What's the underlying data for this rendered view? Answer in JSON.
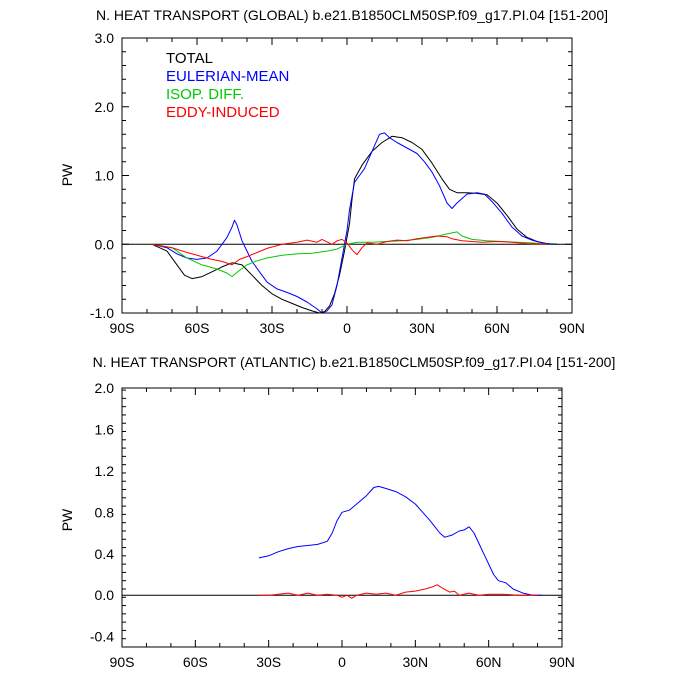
{
  "chart_data": [
    {
      "type": "line",
      "title": "N. HEAT TRANSPORT (GLOBAL) b.e21.B1850CLM50SP.f09_g17.PI.04 [151-200]",
      "ylabel": "PW",
      "xlim": [
        -90,
        90
      ],
      "ylim": [
        -1.0,
        3.0
      ],
      "x_ticks": [
        -90,
        -60,
        -30,
        0,
        30,
        60,
        90
      ],
      "x_tick_labels": [
        "90S",
        "60S",
        "30S",
        "0",
        "30N",
        "60N",
        "90N"
      ],
      "y_ticks": [
        -1.0,
        0.0,
        1.0,
        2.0,
        3.0
      ],
      "y_tick_labels": [
        "-1.0",
        "0.0",
        "1.0",
        "2.0",
        "3.0"
      ],
      "legend": "top-left",
      "zero_line": true,
      "series": [
        {
          "name": "TOTAL",
          "color": "#000000",
          "points": [
            [
              -78,
              0.0
            ],
            [
              -72,
              -0.1
            ],
            [
              -68,
              -0.3
            ],
            [
              -65,
              -0.45
            ],
            [
              -62,
              -0.5
            ],
            [
              -58,
              -0.47
            ],
            [
              -54,
              -0.4
            ],
            [
              -50,
              -0.33
            ],
            [
              -46,
              -0.27
            ],
            [
              -42,
              -0.3
            ],
            [
              -38,
              -0.45
            ],
            [
              -34,
              -0.6
            ],
            [
              -30,
              -0.72
            ],
            [
              -26,
              -0.8
            ],
            [
              -22,
              -0.86
            ],
            [
              -18,
              -0.92
            ],
            [
              -14,
              -0.97
            ],
            [
              -11,
              -1.0
            ],
            [
              -9,
              -0.98
            ],
            [
              -7,
              -0.9
            ],
            [
              -5,
              -0.72
            ],
            [
              -3,
              -0.45
            ],
            [
              -1,
              -0.1
            ],
            [
              1,
              0.3
            ],
            [
              2,
              0.65
            ],
            [
              3,
              0.95
            ],
            [
              6,
              1.15
            ],
            [
              10,
              1.35
            ],
            [
              14,
              1.48
            ],
            [
              18,
              1.57
            ],
            [
              22,
              1.55
            ],
            [
              26,
              1.48
            ],
            [
              30,
              1.38
            ],
            [
              34,
              1.18
            ],
            [
              38,
              0.95
            ],
            [
              41,
              0.8
            ],
            [
              44,
              0.75
            ],
            [
              48,
              0.75
            ],
            [
              52,
              0.74
            ],
            [
              56,
              0.72
            ],
            [
              60,
              0.6
            ],
            [
              64,
              0.42
            ],
            [
              68,
              0.22
            ],
            [
              72,
              0.1
            ],
            [
              76,
              0.04
            ],
            [
              80,
              0.01
            ],
            [
              84,
              0.0
            ]
          ]
        },
        {
          "name": "EULERIAN-MEAN",
          "color": "#0000ff",
          "points": [
            [
              -78,
              0.0
            ],
            [
              -72,
              -0.05
            ],
            [
              -68,
              -0.14
            ],
            [
              -64,
              -0.2
            ],
            [
              -60,
              -0.22
            ],
            [
              -56,
              -0.2
            ],
            [
              -52,
              -0.1
            ],
            [
              -48,
              0.1
            ],
            [
              -46,
              0.25
            ],
            [
              -45,
              0.35
            ],
            [
              -44,
              0.28
            ],
            [
              -42,
              0.05
            ],
            [
              -40,
              -0.1
            ],
            [
              -38,
              -0.25
            ],
            [
              -35,
              -0.4
            ],
            [
              -32,
              -0.55
            ],
            [
              -28,
              -0.65
            ],
            [
              -24,
              -0.7
            ],
            [
              -20,
              -0.76
            ],
            [
              -16,
              -0.84
            ],
            [
              -12,
              -0.94
            ],
            [
              -10,
              -1.0
            ],
            [
              -8,
              -0.97
            ],
            [
              -6,
              -0.88
            ],
            [
              -4,
              -0.6
            ],
            [
              -2,
              -0.2
            ],
            [
              0,
              0.2
            ],
            [
              1,
              0.5
            ],
            [
              3,
              0.9
            ],
            [
              5,
              1.0
            ],
            [
              7,
              1.1
            ],
            [
              10,
              1.35
            ],
            [
              13,
              1.6
            ],
            [
              15,
              1.62
            ],
            [
              17,
              1.55
            ],
            [
              20,
              1.48
            ],
            [
              24,
              1.4
            ],
            [
              28,
              1.32
            ],
            [
              31,
              1.2
            ],
            [
              34,
              1.05
            ],
            [
              37,
              0.85
            ],
            [
              40,
              0.6
            ],
            [
              42,
              0.52
            ],
            [
              44,
              0.6
            ],
            [
              48,
              0.73
            ],
            [
              52,
              0.75
            ],
            [
              55,
              0.73
            ],
            [
              58,
              0.62
            ],
            [
              62,
              0.45
            ],
            [
              66,
              0.25
            ],
            [
              70,
              0.12
            ],
            [
              74,
              0.06
            ],
            [
              78,
              0.02
            ],
            [
              82,
              0.0
            ]
          ]
        },
        {
          "name": "ISOP. DIFF.",
          "color": "#00cc00",
          "points": [
            [
              -78,
              0.0
            ],
            [
              -70,
              -0.05
            ],
            [
              -64,
              -0.2
            ],
            [
              -58,
              -0.3
            ],
            [
              -52,
              -0.36
            ],
            [
              -48,
              -0.42
            ],
            [
              -46,
              -0.47
            ],
            [
              -43,
              -0.38
            ],
            [
              -40,
              -0.3
            ],
            [
              -36,
              -0.24
            ],
            [
              -32,
              -0.2
            ],
            [
              -26,
              -0.16
            ],
            [
              -20,
              -0.14
            ],
            [
              -14,
              -0.13
            ],
            [
              -8,
              -0.1
            ],
            [
              -4,
              -0.07
            ],
            [
              0,
              0.0
            ],
            [
              4,
              0.03
            ],
            [
              10,
              0.03
            ],
            [
              16,
              0.04
            ],
            [
              22,
              0.05
            ],
            [
              28,
              0.07
            ],
            [
              34,
              0.1
            ],
            [
              40,
              0.15
            ],
            [
              44,
              0.18
            ],
            [
              46,
              0.12
            ],
            [
              50,
              0.07
            ],
            [
              56,
              0.05
            ],
            [
              62,
              0.04
            ],
            [
              68,
              0.03
            ],
            [
              74,
              0.02
            ],
            [
              80,
              0.0
            ]
          ]
        },
        {
          "name": "EDDY-INDUCED",
          "color": "#ff0000",
          "points": [
            [
              -78,
              0.0
            ],
            [
              -70,
              -0.05
            ],
            [
              -64,
              -0.12
            ],
            [
              -58,
              -0.18
            ],
            [
              -54,
              -0.22
            ],
            [
              -50,
              -0.25
            ],
            [
              -46,
              -0.3
            ],
            [
              -43,
              -0.22
            ],
            [
              -40,
              -0.18
            ],
            [
              -36,
              -0.12
            ],
            [
              -32,
              -0.06
            ],
            [
              -26,
              0.0
            ],
            [
              -20,
              0.03
            ],
            [
              -16,
              0.06
            ],
            [
              -12,
              0.03
            ],
            [
              -10,
              0.07
            ],
            [
              -6,
              0.0
            ],
            [
              -4,
              0.05
            ],
            [
              -2,
              0.07
            ],
            [
              0,
              0.02
            ],
            [
              2,
              -0.08
            ],
            [
              4,
              -0.15
            ],
            [
              6,
              -0.05
            ],
            [
              8,
              0.02
            ],
            [
              12,
              0.0
            ],
            [
              16,
              0.04
            ],
            [
              20,
              0.06
            ],
            [
              24,
              0.05
            ],
            [
              28,
              0.08
            ],
            [
              32,
              0.1
            ],
            [
              36,
              0.12
            ],
            [
              40,
              0.11
            ],
            [
              42,
              0.08
            ],
            [
              46,
              0.05
            ],
            [
              50,
              0.04
            ],
            [
              54,
              0.03
            ],
            [
              60,
              0.04
            ],
            [
              66,
              0.03
            ],
            [
              72,
              0.01
            ],
            [
              80,
              0.0
            ]
          ]
        }
      ]
    },
    {
      "type": "line",
      "title": "N. HEAT TRANSPORT (ATLANTIC) b.e21.B1850CLM50SP.f09_g17.PI.04 [151-200]",
      "ylabel": "PW",
      "xlim": [
        -90,
        90
      ],
      "ylim": [
        -0.5,
        2.0
      ],
      "x_ticks": [
        -90,
        -60,
        -30,
        0,
        30,
        60,
        90
      ],
      "x_tick_labels": [
        "90S",
        "60S",
        "30S",
        "0",
        "30N",
        "60N",
        "90N"
      ],
      "y_ticks": [
        -0.4,
        0.0,
        0.4,
        0.8,
        1.2,
        1.6,
        2.0
      ],
      "y_tick_labels": [
        "-0.4",
        "0.0",
        "0.4",
        "0.8",
        "1.2",
        "1.6",
        "2.0"
      ],
      "zero_line": true,
      "series": [
        {
          "name": "",
          "color": "#0000ff",
          "points": [
            [
              -34,
              0.36
            ],
            [
              -30,
              0.38
            ],
            [
              -26,
              0.42
            ],
            [
              -22,
              0.45
            ],
            [
              -18,
              0.47
            ],
            [
              -14,
              0.48
            ],
            [
              -10,
              0.49
            ],
            [
              -6,
              0.52
            ],
            [
              -4,
              0.6
            ],
            [
              -2,
              0.72
            ],
            [
              0,
              0.8
            ],
            [
              3,
              0.82
            ],
            [
              6,
              0.88
            ],
            [
              10,
              0.96
            ],
            [
              13,
              1.04
            ],
            [
              15,
              1.05
            ],
            [
              18,
              1.03
            ],
            [
              22,
              1.0
            ],
            [
              26,
              0.95
            ],
            [
              30,
              0.88
            ],
            [
              33,
              0.8
            ],
            [
              36,
              0.72
            ],
            [
              38,
              0.66
            ],
            [
              40,
              0.6
            ],
            [
              42,
              0.56
            ],
            [
              45,
              0.58
            ],
            [
              48,
              0.62
            ],
            [
              50,
              0.63
            ],
            [
              52,
              0.66
            ],
            [
              54,
              0.6
            ],
            [
              56,
              0.5
            ],
            [
              58,
              0.4
            ],
            [
              60,
              0.3
            ],
            [
              62,
              0.2
            ],
            [
              64,
              0.14
            ],
            [
              67,
              0.12
            ],
            [
              70,
              0.06
            ],
            [
              74,
              0.02
            ],
            [
              78,
              0.0
            ],
            [
              82,
              0.0
            ]
          ]
        },
        {
          "name": "",
          "color": "#ff0000",
          "points": [
            [
              -34,
              0.0
            ],
            [
              -30,
              0.0
            ],
            [
              -26,
              0.01
            ],
            [
              -22,
              0.02
            ],
            [
              -18,
              0.0
            ],
            [
              -14,
              0.02
            ],
            [
              -10,
              0.0
            ],
            [
              -6,
              0.01
            ],
            [
              -2,
              0.0
            ],
            [
              0,
              -0.02
            ],
            [
              2,
              0.0
            ],
            [
              4,
              -0.03
            ],
            [
              6,
              0.0
            ],
            [
              10,
              0.02
            ],
            [
              14,
              0.01
            ],
            [
              18,
              0.02
            ],
            [
              22,
              0.0
            ],
            [
              26,
              0.03
            ],
            [
              30,
              0.04
            ],
            [
              34,
              0.06
            ],
            [
              37,
              0.08
            ],
            [
              39,
              0.1
            ],
            [
              41,
              0.07
            ],
            [
              44,
              0.03
            ],
            [
              46,
              0.04
            ],
            [
              48,
              0.0
            ],
            [
              52,
              0.02
            ],
            [
              56,
              0.0
            ],
            [
              60,
              0.01
            ],
            [
              66,
              0.01
            ],
            [
              72,
              0.0
            ],
            [
              80,
              0.0
            ]
          ]
        }
      ]
    }
  ]
}
